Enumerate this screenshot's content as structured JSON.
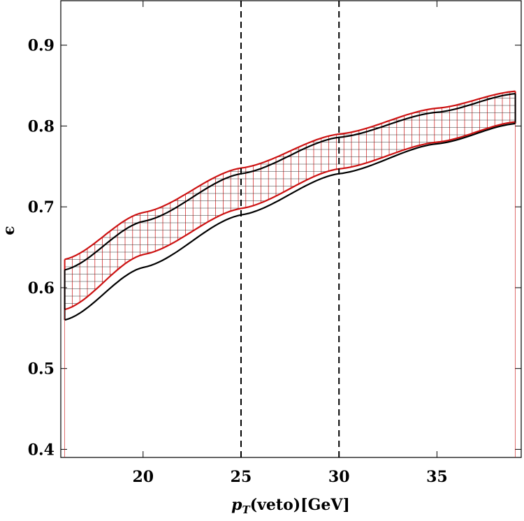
{
  "chart_data": {
    "type": "area",
    "xlabel_main": "p",
    "xlabel_sub": "T",
    "xlabel_rest": "(veto)[GeV]",
    "ylabel": "ϵ",
    "xlim": [
      15.8,
      39.3
    ],
    "ylim": [
      0.39,
      0.955
    ],
    "xticks": [
      20,
      25,
      30,
      35
    ],
    "xtick_labels": [
      "20",
      "25",
      "30",
      "35"
    ],
    "yticks": [
      0.4,
      0.5,
      0.6,
      0.7,
      0.8,
      0.9
    ],
    "ytick_labels": [
      "0.4",
      "0.5",
      "0.6",
      "0.7",
      "0.8",
      "0.9"
    ],
    "vlines": [
      25,
      30
    ],
    "x": [
      16,
      20,
      25,
      30,
      35,
      39
    ],
    "series": [
      {
        "upper": [
          0.635,
          0.693,
          0.748,
          0.79,
          0.822,
          0.843
        ],
        "lower": [
          0.573,
          0.641,
          0.698,
          0.747,
          0.78,
          0.805
        ],
        "color": "#cc1111"
      },
      {
        "upper": [
          0.622,
          0.682,
          0.741,
          0.786,
          0.817,
          0.84
        ],
        "lower": [
          0.56,
          0.625,
          0.69,
          0.741,
          0.778,
          0.803
        ],
        "color": "#000000"
      }
    ],
    "hatch_color": "#cc1111",
    "grid": false
  }
}
